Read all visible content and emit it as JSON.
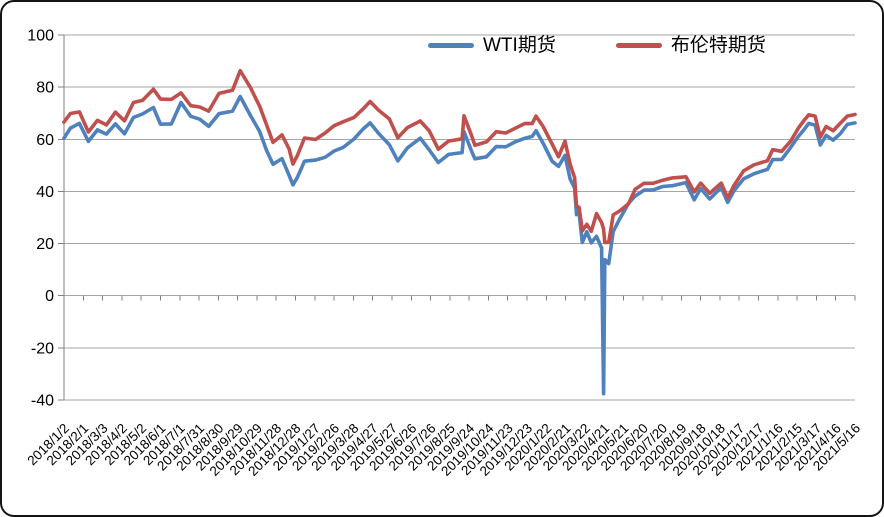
{
  "chart_data": {
    "type": "line",
    "title": "",
    "xlabel": "",
    "ylabel": "",
    "grid": "horizontal",
    "legend_position": "top-center-inside",
    "ylim": [
      -40,
      100
    ],
    "y_ticks": [
      100,
      80,
      60,
      40,
      20,
      0,
      -20,
      -40
    ],
    "x_tick_interval_days": 30,
    "x_tick_labels": [
      "2018/1/2",
      "2018/2/1",
      "2018/3/3",
      "2018/4/2",
      "2018/5/2",
      "2018/6/1",
      "2018/7/1",
      "2018/7/31",
      "2018/8/30",
      "2018/9/29",
      "2018/10/29",
      "2018/11/28",
      "2018/12/28",
      "2019/1/27",
      "2019/2/26",
      "2019/3/28",
      "2019/4/27",
      "2019/5/27",
      "2019/6/26",
      "2019/7/26",
      "2019/8/25",
      "2019/9/24",
      "2019/10/24",
      "2019/11/23",
      "2019/12/23",
      "2020/1/22",
      "2020/2/21",
      "2020/3/22",
      "2020/4/21",
      "2020/5/21",
      "2020/6/20",
      "2020/7/20",
      "2020/8/19",
      "2020/9/18",
      "2020/10/18",
      "2020/11/17",
      "2020/12/17",
      "2021/1/16",
      "2021/2/15",
      "2021/3/17",
      "2021/4/16",
      "2021/5/16"
    ],
    "x": [
      "2018/1/2",
      "2018/1/12",
      "2018/1/26",
      "2018/2/9",
      "2018/2/23",
      "2018/3/9",
      "2018/3/23",
      "2018/4/6",
      "2018/4/20",
      "2018/5/4",
      "2018/5/21",
      "2018/6/1",
      "2018/6/18",
      "2018/7/3",
      "2018/7/18",
      "2018/8/1",
      "2018/8/15",
      "2018/8/31",
      "2018/9/21",
      "2018/10/3",
      "2018/10/19",
      "2018/11/2",
      "2018/11/13",
      "2018/11/23",
      "2018/12/7",
      "2018/12/18",
      "2018/12/24",
      "2018/12/31",
      "2019/1/11",
      "2019/1/28",
      "2019/2/12",
      "2019/2/26",
      "2019/3/12",
      "2019/3/29",
      "2019/4/12",
      "2019/4/23",
      "2019/5/6",
      "2019/5/23",
      "2019/6/5",
      "2019/6/20",
      "2019/7/10",
      "2019/7/24",
      "2019/8/7",
      "2019/8/23",
      "2019/9/13",
      "2019/9/16",
      "2019/9/27",
      "2019/10/3",
      "2019/10/21",
      "2019/11/5",
      "2019/11/20",
      "2019/12/6",
      "2019/12/20",
      "2019/12/31",
      "2020/1/6",
      "2020/1/17",
      "2020/1/31",
      "2020/2/10",
      "2020/2/20",
      "2020/2/28",
      "2020/3/6",
      "2020/3/9",
      "2020/3/13",
      "2020/3/18",
      "2020/3/25",
      "2020/4/1",
      "2020/4/9",
      "2020/4/17",
      "2020/4/20",
      "2020/4/22",
      "2020/4/28",
      "2020/5/5",
      "2020/5/15",
      "2020/5/29",
      "2020/6/8",
      "2020/6/22",
      "2020/7/6",
      "2020/7/21",
      "2020/8/5",
      "2020/8/26",
      "2020/9/8",
      "2020/9/18",
      "2020/10/2",
      "2020/10/20",
      "2020/10/30",
      "2020/11/9",
      "2020/11/24",
      "2020/12/10",
      "2020/12/31",
      "2021/1/8",
      "2021/1/22",
      "2021/2/5",
      "2021/2/17",
      "2021/2/25",
      "2021/3/5",
      "2021/3/15",
      "2021/3/23",
      "2021/4/1",
      "2021/4/12",
      "2021/4/23",
      "2021/5/4",
      "2021/5/16"
    ],
    "series": [
      {
        "name": "WTI期货",
        "color": "#4F81BD",
        "values": [
          60.4,
          64.3,
          66.1,
          59.2,
          63.6,
          62.0,
          65.9,
          62.1,
          68.4,
          69.7,
          72.2,
          65.8,
          65.9,
          74.1,
          68.8,
          67.7,
          65.0,
          69.8,
          70.8,
          76.4,
          69.1,
          63.1,
          55.7,
          50.4,
          52.6,
          46.2,
          42.5,
          45.4,
          51.6,
          52.0,
          53.1,
          55.5,
          56.9,
          60.1,
          63.9,
          66.3,
          62.3,
          57.9,
          51.7,
          56.7,
          60.4,
          55.9,
          51.1,
          54.2,
          54.9,
          62.9,
          55.9,
          52.5,
          53.3,
          57.2,
          57.1,
          59.2,
          60.4,
          61.1,
          63.3,
          58.5,
          51.6,
          49.6,
          53.8,
          44.8,
          41.3,
          31.1,
          31.7,
          20.4,
          24.5,
          20.3,
          22.8,
          18.3,
          -37.6,
          13.8,
          12.3,
          24.6,
          29.4,
          35.5,
          38.2,
          40.5,
          40.6,
          41.9,
          42.2,
          43.4,
          36.8,
          41.1,
          37.1,
          41.5,
          35.8,
          40.3,
          44.9,
          46.8,
          48.5,
          52.2,
          52.3,
          56.9,
          61.1,
          63.5,
          66.1,
          65.4,
          57.8,
          61.5,
          59.7,
          62.1,
          65.7,
          66.3
        ]
      },
      {
        "name": "布伦特期货",
        "color": "#C0504D",
        "values": [
          66.6,
          69.9,
          70.5,
          62.8,
          67.3,
          65.5,
          70.4,
          67.1,
          74.1,
          74.9,
          79.2,
          75.4,
          75.3,
          77.8,
          72.9,
          72.4,
          70.8,
          77.6,
          78.8,
          86.3,
          79.8,
          72.8,
          65.5,
          58.8,
          61.7,
          56.3,
          50.5,
          53.8,
          60.5,
          59.9,
          62.4,
          65.2,
          66.7,
          68.4,
          71.6,
          74.5,
          71.2,
          67.8,
          60.6,
          64.5,
          67.0,
          63.2,
          56.2,
          59.3,
          60.2,
          69.0,
          61.9,
          57.7,
          59.0,
          62.9,
          62.4,
          64.4,
          66.1,
          66.0,
          68.9,
          64.9,
          58.2,
          53.3,
          59.3,
          50.5,
          45.3,
          34.4,
          33.9,
          24.9,
          27.4,
          24.7,
          31.5,
          28.1,
          25.6,
          20.4,
          20.5,
          31.0,
          32.5,
          35.3,
          40.8,
          43.1,
          43.1,
          44.3,
          45.2,
          45.6,
          39.8,
          43.2,
          39.3,
          43.2,
          37.5,
          42.4,
          47.9,
          50.2,
          51.8,
          56.0,
          55.4,
          59.3,
          64.3,
          67.0,
          69.4,
          68.9,
          60.8,
          64.9,
          63.3,
          66.1,
          68.9,
          69.5
        ]
      }
    ],
    "colors": {
      "gridline": "#A6A6A6",
      "axis": "#808080",
      "text": "#000000",
      "background": "#FFFFFF"
    }
  }
}
